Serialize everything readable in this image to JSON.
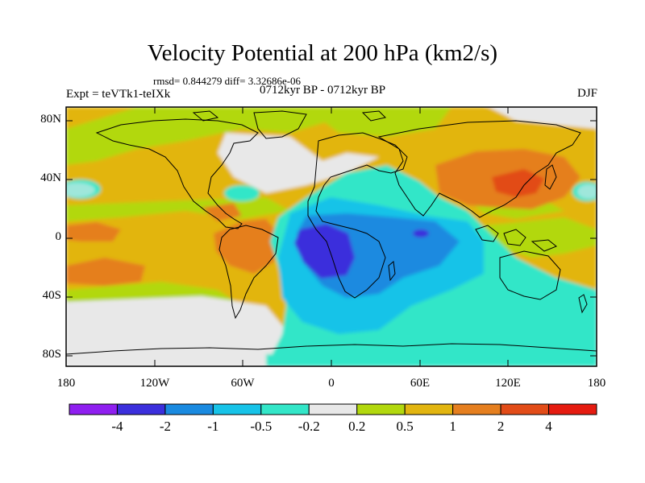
{
  "header": {
    "title": "Velocity Potential at 200 hPa (km2/s)",
    "stats": "rmsd= 0.844279 diff= 3.32686e-06",
    "experiment": "Expt = teVTk1-teIXk",
    "period": "0712kyr BP - 0712kyr BP",
    "season": "DJF"
  },
  "axes": {
    "y_ticks": [
      "80N",
      "40N",
      "0",
      "40S",
      "80S"
    ],
    "x_ticks": [
      "180",
      "120W",
      "60W",
      "0",
      "60E",
      "120E",
      "180"
    ]
  },
  "colorbar": {
    "colors": [
      "#8f1ff0",
      "#3b2fdc",
      "#1a8ae0",
      "#17c3e8",
      "#33e6c8",
      "#e8e8e8",
      "#b2d80e",
      "#e2b510",
      "#e57f1f",
      "#e24c18",
      "#e51b10"
    ],
    "labels": [
      "-4",
      "-2",
      "-1",
      "-0.5",
      "-0.2",
      "0.2",
      "0.5",
      "1",
      "2",
      "4"
    ]
  }
}
